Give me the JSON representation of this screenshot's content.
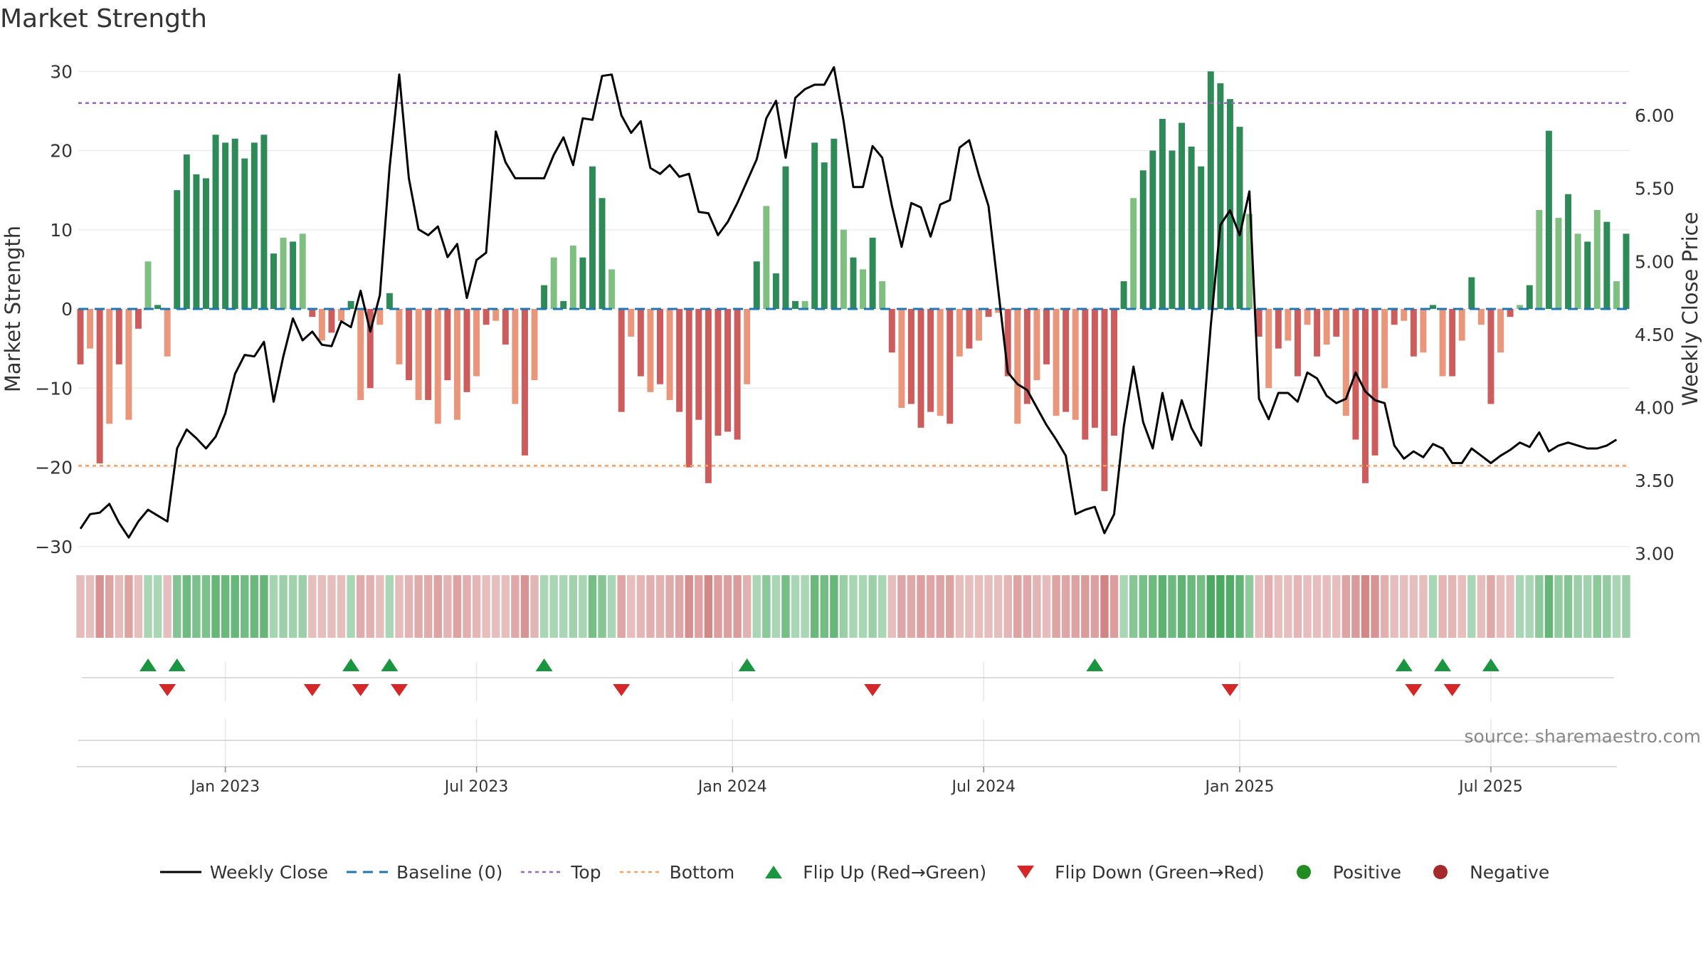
{
  "title": "Market Strength",
  "source": "source: sharemaestro.com",
  "colors": {
    "line": "#000000",
    "baseline": "#1f77b4",
    "top": "#9467bd",
    "bottom": "#f4a261",
    "flip_up": "#1a9641",
    "flip_down": "#d62728",
    "positive": "#228B22",
    "negative": "#A52A2A",
    "green_dark": "#2e8b57",
    "green_light": "#7fbf7f",
    "red_dark": "#cd5c5c",
    "red_light": "#e9967a"
  },
  "legend": [
    {
      "key": "line",
      "label": "Weekly Close"
    },
    {
      "key": "baseline",
      "label": "Baseline (0)"
    },
    {
      "key": "top",
      "label": "Top"
    },
    {
      "key": "bottom",
      "label": "Bottom"
    },
    {
      "key": "flip_up",
      "label": "Flip Up (Red→Green)"
    },
    {
      "key": "flip_down",
      "label": "Flip Down (Green→Red)"
    },
    {
      "key": "positive",
      "label": "Positive"
    },
    {
      "key": "negative",
      "label": "Negative"
    }
  ],
  "chart_data": {
    "type": "bar",
    "title": "Market Strength",
    "ylabel": "Market Strength",
    "y2label": "Weekly Close Price",
    "ylim": [
      -32,
      32
    ],
    "y2lim": [
      2.94,
      6.41
    ],
    "yticks": [
      30,
      20,
      10,
      0,
      -10,
      -20,
      -30
    ],
    "y2ticks": [
      "6.00",
      "5.50",
      "5.00",
      "4.50",
      "4.00",
      "3.50",
      "3.00"
    ],
    "thresholds": {
      "top": 26,
      "bottom": -19.8,
      "baseline": 0
    },
    "x_tick_labels": [
      "Jan 2023",
      "Jul 2023",
      "Jan 2024",
      "Jul 2024",
      "Jan 2025",
      "Jul 2025"
    ],
    "x_tick_weeks": [
      15,
      41,
      67.5,
      93.5,
      120,
      146
    ],
    "strength": [
      -7,
      -5,
      -19.5,
      -14.5,
      -7,
      -14,
      -2.5,
      6,
      0.5,
      -6,
      15,
      19.5,
      17,
      16.5,
      22,
      21,
      21.5,
      19,
      21,
      22,
      7,
      9,
      8.5,
      9.5,
      -1,
      -4,
      -3,
      -1.5,
      1,
      -11.5,
      -10,
      -2,
      2,
      -7,
      -9,
      -11.5,
      -11.5,
      -14.5,
      -9,
      -14,
      -10.5,
      -8.5,
      -2,
      -1.5,
      -4.5,
      -12,
      -18.5,
      -9,
      3,
      6.5,
      1,
      8,
      6.5,
      18,
      14,
      5,
      -13,
      -3.5,
      -8.5,
      -10.5,
      -9.5,
      -11.5,
      -13,
      -20,
      -14,
      -22,
      -16,
      -15.5,
      -16.5,
      -9.5,
      6,
      13,
      4.5,
      18,
      1,
      1,
      21,
      18.5,
      21.5,
      10,
      6.5,
      5,
      9,
      3.5,
      -5.5,
      -12.5,
      -12,
      -15,
      -13,
      -13.5,
      -14.5,
      -6,
      -5,
      -4,
      -1,
      -0.5,
      -8.5,
      -14.5,
      -12,
      -9,
      -7,
      -13.5,
      -13,
      -14,
      -16.5,
      -15,
      -23,
      -16,
      3.5,
      14,
      17.5,
      20,
      24,
      20,
      23.5,
      20.5,
      18,
      30,
      28.5,
      26.5,
      23,
      12,
      -3.5,
      -10,
      -5,
      -4,
      -8.5,
      -2,
      -6,
      -4.5,
      -3.5,
      -13.5,
      -16.5,
      -22,
      -18.5,
      -10,
      -2,
      -1.5,
      -6,
      -5.5,
      0.5,
      -8.5,
      -8.5,
      -4,
      4,
      -2,
      -12,
      -5.5,
      -1,
      0.5,
      3,
      12.5,
      22.5,
      11.5,
      14.5,
      9.5,
      8.5,
      12.5,
      11,
      3.5,
      9.5
    ],
    "close": [
      3.17,
      3.27,
      3.28,
      3.34,
      3.21,
      3.11,
      3.22,
      3.3,
      3.26,
      3.22,
      3.72,
      3.85,
      3.79,
      3.72,
      3.8,
      3.96,
      4.23,
      4.36,
      4.35,
      4.45,
      4.04,
      4.35,
      4.61,
      4.46,
      4.52,
      4.43,
      4.42,
      4.59,
      4.55,
      4.8,
      4.52,
      4.77,
      5.64,
      6.28,
      5.57,
      5.22,
      5.18,
      5.24,
      5.03,
      5.12,
      4.75,
      5.01,
      5.06,
      5.89,
      5.68,
      5.57,
      5.57,
      5.57,
      5.57,
      5.73,
      5.85,
      5.66,
      5.98,
      5.97,
      6.27,
      6.28,
      6.0,
      5.88,
      5.96,
      5.64,
      5.6,
      5.66,
      5.58,
      5.6,
      5.34,
      5.33,
      5.18,
      5.27,
      5.4,
      5.55,
      5.7,
      5.98,
      6.1,
      5.71,
      6.12,
      6.18,
      6.21,
      6.21,
      6.33,
      5.96,
      5.51,
      5.51,
      5.79,
      5.71,
      5.38,
      5.1,
      5.4,
      5.37,
      5.17,
      5.39,
      5.42,
      5.78,
      5.83,
      5.59,
      5.38,
      4.81,
      4.24,
      4.16,
      4.12,
      4.0,
      3.88,
      3.78,
      3.67,
      3.27,
      3.3,
      3.32,
      3.14,
      3.27,
      3.87,
      4.28,
      3.9,
      3.72,
      4.1,
      3.78,
      4.05,
      3.86,
      3.74,
      4.56,
      5.25,
      5.35,
      5.18,
      5.48,
      4.06,
      3.92,
      4.1,
      4.1,
      4.04,
      4.24,
      4.2,
      4.08,
      4.03,
      4.06,
      4.24,
      4.11,
      4.05,
      4.03,
      3.74,
      3.65,
      3.7,
      3.66,
      3.75,
      3.72,
      3.62,
      3.62,
      3.72,
      3.67,
      3.62,
      3.67,
      3.71,
      3.76,
      3.73,
      3.83,
      3.7,
      3.74,
      3.76,
      3.74,
      3.72,
      3.72,
      3.74,
      3.78
    ],
    "flip_up_weeks": [
      7,
      10,
      28,
      32,
      48,
      69,
      105,
      137,
      141,
      146
    ],
    "flip_down_weeks": [
      9,
      24,
      29,
      33,
      56,
      82,
      119,
      138,
      142
    ]
  }
}
